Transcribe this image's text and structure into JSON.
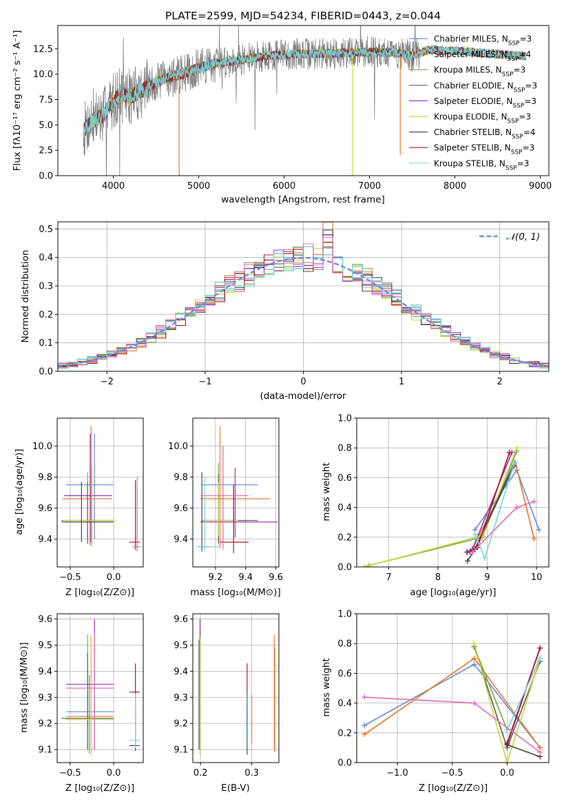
{
  "colors": {
    "palette": [
      "#6a8be0",
      "#e7782a",
      "#77a84a",
      "#5e5e5e",
      "#9c2fbf",
      "#c9d53a",
      "#444444",
      "#a81418",
      "#79d5d8"
    ],
    "pink": "#e46fae",
    "gray_spectrum": "#7f7f7f",
    "grid": "#b0b0b0"
  },
  "legend_entries": [
    {
      "prefix": "Chabrier MILES, N",
      "sub": "SSP",
      "suffix": "=3"
    },
    {
      "prefix": "Salpeter MILES, N",
      "sub": "SSP",
      "suffix": "=4"
    },
    {
      "prefix": "Kroupa MILES, N",
      "sub": "SSP",
      "suffix": "=3"
    },
    {
      "prefix": "Chabrier ELODIE, N",
      "sub": "SSP",
      "suffix": "=3"
    },
    {
      "prefix": "Salpeter ELODIE, N",
      "sub": "SSP",
      "suffix": "=3"
    },
    {
      "prefix": "Kroupa ELODIE, N",
      "sub": "SSP",
      "suffix": "=3"
    },
    {
      "prefix": "Chabrier STELIB, N",
      "sub": "SSP",
      "suffix": "=4"
    },
    {
      "prefix": "Salpeter STELIB, N",
      "sub": "SSP",
      "suffix": "=3"
    },
    {
      "prefix": "Kroupa STELIB, N",
      "sub": "SSP",
      "suffix": "=3"
    }
  ],
  "chart_data": [
    {
      "id": "spectrum",
      "type": "line",
      "title": "PLATE=2599, MJD=54234, FIBERID=0443, z=0.044",
      "xlabel": "wavelength [Angstrom, rest frame]",
      "ylabel": "Flux [fλ10⁻¹⁷ erg cm⁻² s⁻¹ A⁻¹]",
      "xlim": [
        3350,
        9100
      ],
      "ylim": [
        0,
        14.8
      ],
      "xticks": [
        4000,
        5000,
        6000,
        7000,
        8000,
        9000
      ],
      "yticks": [
        "0.0",
        "2.5",
        "5.0",
        "7.5",
        "10.0",
        "12.5"
      ],
      "legend_position": "right",
      "data_profile": {
        "x": [
          3650,
          3700,
          3800,
          3900,
          4000,
          4100,
          4200,
          4300,
          4400,
          4600,
          4800,
          5000,
          5200,
          5500,
          5800,
          6100,
          6400,
          6700,
          7000,
          7300,
          7500,
          7700,
          8000,
          8300,
          8600,
          8830
        ],
        "y": [
          4.4,
          5.0,
          5.6,
          6.1,
          7.5,
          8.0,
          7.8,
          8.3,
          8.7,
          9.6,
          10.0,
          10.6,
          11.1,
          11.4,
          11.8,
          12.0,
          12.0,
          12.1,
          12.2,
          12.1,
          11.8,
          12.4,
          12.3,
          12.1,
          11.9,
          11.8
        ]
      },
      "data_x_range": [
        3650,
        8830
      ],
      "observed_x_range": [
        3650,
        7600
      ]
    },
    {
      "id": "residual-histogram",
      "type": "bar",
      "xlabel": "(data-model)/error",
      "ylabel": "Normed distribution",
      "xlim": [
        -2.5,
        2.5
      ],
      "ylim": [
        0,
        0.525
      ],
      "xticks": [
        "−2",
        "−1",
        "0",
        "1",
        "2"
      ],
      "yticks": [
        "0.0",
        "0.1",
        "0.2",
        "0.3",
        "0.4",
        "0.5"
      ],
      "reference_curve": "𝒩(0, 1)",
      "bin_width": 0.1
    },
    {
      "id": "age-vs-metallicity",
      "type": "scatter",
      "xlabel": "Z [log₁₀(Z/Z⊙)]",
      "ylabel": "age  [log₁₀(age/yr)]",
      "xlim": [
        -0.65,
        0.34
      ],
      "ylim": [
        9.22,
        10.18
      ],
      "xticks": [
        "−0.5",
        "0.0"
      ],
      "yticks": [
        "9.4",
        "9.6",
        "9.8",
        "10.0"
      ],
      "crosses": [
        {
          "series": 0,
          "x": -0.22,
          "y": 9.75,
          "xerr": [
            0.33,
            0.22
          ],
          "yerr": [
            0.35,
            0.33
          ]
        },
        {
          "series": 1,
          "x": -0.26,
          "y": 9.66,
          "xerr": [
            0.33,
            0.24
          ],
          "yerr": [
            0.28,
            0.47
          ]
        },
        {
          "series": 2,
          "x": -0.3,
          "y": 9.52,
          "xerr": [
            0.27,
            0.3
          ],
          "yerr": [
            0.13,
            0.31
          ]
        },
        {
          "series": 3,
          "x": -0.3,
          "y": 9.52,
          "xerr": [
            0.3,
            0.3
          ],
          "yerr": [
            0.15,
            0.25
          ]
        },
        {
          "series": 4,
          "x": -0.27,
          "y": 9.68,
          "xerr": [
            0.3,
            0.25
          ],
          "yerr": [
            0.32,
            0.4
          ]
        },
        {
          "series": 5,
          "x": -0.25,
          "y": 9.52,
          "xerr": [
            0.33,
            0.27
          ],
          "yerr": [
            0.17,
            0.35
          ]
        },
        {
          "series": 6,
          "x": -0.37,
          "y": 9.51,
          "xerr": [
            0.23,
            0.37
          ],
          "yerr": [
            0.13,
            0.26
          ]
        },
        {
          "series": 7,
          "x": 0.25,
          "y": 9.38,
          "xerr": [
            0.07,
            0.05
          ],
          "yerr": [
            0.05,
            0.4
          ]
        },
        {
          "series": 8,
          "x": 0.27,
          "y": 9.35,
          "xerr": [
            0.05,
            0.05
          ],
          "yerr": [
            0.03,
            0.37
          ]
        },
        {
          "series": 9,
          "x": 0.27,
          "y": 9.35,
          "xerr": [
            0.05,
            0.03
          ],
          "yerr": [
            0.03,
            0.45
          ]
        }
      ]
    },
    {
      "id": "age-vs-mass",
      "type": "scatter",
      "xlabel": "mass [log₁₀(M/M⊙)]",
      "ylabel": "",
      "xlim": [
        9.05,
        9.62
      ],
      "ylim": [
        9.22,
        10.18
      ],
      "xticks": [
        "9.2",
        "9.4",
        "9.6"
      ],
      "yticks": [
        "9.4",
        "9.6",
        "9.8",
        "10.0"
      ],
      "crosses": [
        {
          "series": 0,
          "x": 9.25,
          "y": 9.75,
          "xerr": [
            0.14,
            0.23
          ],
          "yerr": [
            0.37,
            0.25
          ]
        },
        {
          "series": 1,
          "x": 9.23,
          "y": 9.66,
          "xerr": [
            0.13,
            0.33
          ],
          "yerr": [
            0.32,
            0.47
          ]
        },
        {
          "series": 2,
          "x": 9.22,
          "y": 9.52,
          "xerr": [
            0.1,
            0.18
          ],
          "yerr": [
            0.15,
            0.37
          ]
        },
        {
          "series": 3,
          "x": 9.22,
          "y": 9.52,
          "xerr": [
            0.11,
            0.26
          ],
          "yerr": [
            0.15,
            0.3
          ]
        },
        {
          "series": 4,
          "x": 9.33,
          "y": 9.51,
          "xerr": [
            0.23,
            0.28
          ],
          "yerr": [
            0.1,
            0.35
          ]
        },
        {
          "series": 5,
          "x": 9.22,
          "y": 9.52,
          "xerr": [
            0.1,
            0.13
          ],
          "yerr": [
            0.1,
            0.25
          ]
        },
        {
          "series": 6,
          "x": 9.11,
          "y": 9.35,
          "xerr": [
            0.03,
            0.05
          ],
          "yerr": [
            0.03,
            0.48
          ]
        },
        {
          "series": 7,
          "x": 9.32,
          "y": 9.38,
          "xerr": [
            0.09,
            0.1
          ],
          "yerr": [
            0.07,
            0.37
          ]
        },
        {
          "series": 8,
          "x": 9.13,
          "y": 9.35,
          "xerr": [
            0.05,
            0.1
          ],
          "yerr": [
            0.03,
            0.45
          ]
        },
        {
          "series": 9,
          "x": 9.25,
          "y": 9.68,
          "xerr": [
            0.15,
            0.17
          ],
          "yerr": [
            0.35,
            0.27
          ]
        }
      ]
    },
    {
      "id": "mass-weight-vs-age",
      "type": "line",
      "xlabel": "age  [log₁₀(age/yr)]",
      "ylabel": "mass weight",
      "xlim": [
        6.35,
        10.25
      ],
      "ylim": [
        0,
        1
      ],
      "xticks": [
        "7",
        "8",
        "9",
        "10"
      ],
      "yticks": [
        "0.0",
        "0.2",
        "0.4",
        "0.6",
        "0.8",
        "1.0"
      ],
      "series": [
        {
          "color_index": 0,
          "x": [
            8.75,
            9.6,
            10.05
          ],
          "y": [
            0.25,
            0.65,
            0.25
          ]
        },
        {
          "color_index": 1,
          "x": [
            8.7,
            9.57,
            9.95
          ],
          "y": [
            0.12,
            0.7,
            0.19
          ]
        },
        {
          "color_index": 2,
          "x": [
            6.6,
            8.9,
            9.6
          ],
          "y": [
            0.01,
            0.2,
            0.78
          ]
        },
        {
          "color_index": 3,
          "x": [
            8.58,
            8.75,
            9.55
          ],
          "y": [
            0.1,
            0.12,
            0.68
          ]
        },
        {
          "color_index": 4,
          "x": [
            8.6,
            8.7,
            9.5
          ],
          "y": [
            0.1,
            0.12,
            0.77
          ]
        },
        {
          "color_index": 5,
          "x": [
            6.5,
            8.9,
            9.6
          ],
          "y": [
            0.0,
            0.21,
            0.8
          ]
        },
        {
          "color_index": 6,
          "x": [
            8.6,
            8.75,
            9.55
          ],
          "y": [
            0.04,
            0.12,
            0.7
          ]
        },
        {
          "color_index": 7,
          "x": [
            8.65,
            8.8,
            9.45
          ],
          "y": [
            0.1,
            0.13,
            0.77
          ]
        },
        {
          "color_index": 8,
          "x": [
            8.75,
            8.95,
            9.55
          ],
          "y": [
            0.22,
            0.06,
            0.7
          ]
        },
        {
          "color_index": "pink",
          "x": [
            8.7,
            9.6,
            9.95
          ],
          "y": [
            0.1,
            0.4,
            0.44
          ]
        }
      ]
    },
    {
      "id": "mass-vs-metallicity",
      "type": "scatter",
      "xlabel": "Z [log₁₀(Z/Z⊙)]",
      "ylabel": "mass [log₁₀(M/M⊙)]",
      "xlim": [
        -0.65,
        0.34
      ],
      "ylim": [
        9.05,
        9.62
      ],
      "xticks": [
        "−0.5",
        "0.0"
      ],
      "yticks": [
        "9.1",
        "9.2",
        "9.3",
        "9.4",
        "9.5",
        "9.6"
      ],
      "crosses": [
        {
          "series": 0,
          "x": -0.28,
          "y": 9.245,
          "xerr": [
            0.27,
            0.28
          ],
          "yerr": [
            0.16,
            0.14
          ]
        },
        {
          "series": 1,
          "x": -0.26,
          "y": 9.227,
          "xerr": [
            0.28,
            0.25
          ],
          "yerr": [
            0.13,
            0.31
          ]
        },
        {
          "series": 2,
          "x": -0.3,
          "y": 9.22,
          "xerr": [
            0.3,
            0.3
          ],
          "yerr": [
            0.12,
            0.32
          ]
        },
        {
          "series": 3,
          "x": -0.3,
          "y": 9.22,
          "xerr": [
            0.3,
            0.3
          ],
          "yerr": [
            0.12,
            0.25
          ]
        },
        {
          "series": 4,
          "x": -0.22,
          "y": 9.35,
          "xerr": [
            0.33,
            0.22
          ],
          "yerr": [
            0.25,
            0.25
          ]
        },
        {
          "series": 5,
          "x": -0.26,
          "y": 9.215,
          "xerr": [
            0.3,
            0.26
          ],
          "yerr": [
            0.14,
            0.32
          ]
        },
        {
          "series": 6,
          "x": 0.25,
          "y": 9.115,
          "xerr": [
            0.07,
            0.05
          ],
          "yerr": [
            0.02,
            0.13
          ]
        },
        {
          "series": 7,
          "x": 0.25,
          "y": 9.32,
          "xerr": [
            0.07,
            0.05
          ],
          "yerr": [
            0.09,
            0.11
          ]
        },
        {
          "series": 8,
          "x": 0.25,
          "y": 9.135,
          "xerr": [
            0.07,
            0.05
          ],
          "yerr": [
            0.03,
            0.18
          ]
        },
        {
          "series": 9,
          "x": -0.22,
          "y": 9.335,
          "xerr": [
            0.33,
            0.22
          ],
          "yerr": [
            0.23,
            0.21
          ]
        }
      ]
    },
    {
      "id": "mass-vs-extinction",
      "type": "scatter",
      "xlabel": "E(B-V)",
      "ylabel": "",
      "xlim": [
        0.185,
        0.353
      ],
      "ylim": [
        9.05,
        9.62
      ],
      "xticks": [
        "0.2",
        "0.3"
      ],
      "yticks": [
        "9.1",
        "9.2",
        "9.3",
        "9.4",
        "9.5",
        "9.6"
      ],
      "vlines": [
        {
          "series": 4,
          "x": 0.199,
          "y": [
            9.35,
            9.6
          ]
        },
        {
          "series": 2,
          "x": 0.198,
          "y": [
            9.1,
            9.53
          ]
        },
        {
          "series": 5,
          "x": 0.199,
          "y": [
            9.08,
            9.53
          ]
        },
        {
          "series": 3,
          "x": 0.197,
          "y": [
            9.1,
            9.52
          ]
        },
        {
          "series": 1,
          "x": 0.3,
          "y": [
            9.12,
            9.31
          ]
        },
        {
          "series": 6,
          "x": 0.291,
          "y": [
            9.08,
            9.27
          ]
        },
        {
          "series": 7,
          "x": 0.291,
          "y": [
            9.2,
            9.43
          ]
        },
        {
          "series": 8,
          "x": 0.29,
          "y": [
            9.13,
            9.32
          ]
        },
        {
          "series": 1,
          "x": 0.344,
          "y": [
            9.1,
            9.54
          ]
        },
        {
          "series": 1,
          "x": 0.345,
          "y": [
            9.09,
            9.49
          ]
        }
      ]
    },
    {
      "id": "mass-weight-vs-metallicity",
      "type": "line",
      "xlabel": "Z [log₁₀(Z/Z⊙)]",
      "ylabel": "mass weight",
      "xlim": [
        -1.37,
        0.38
      ],
      "ylim": [
        0,
        1
      ],
      "xticks": [
        "−1.0",
        "−0.5",
        "0.0"
      ],
      "yticks": [
        "0.0",
        "0.2",
        "0.4",
        "0.6",
        "0.8",
        "1.0"
      ],
      "series": [
        {
          "color_index": 0,
          "x": [
            -1.3,
            -0.3,
            0.3
          ],
          "y": [
            0.25,
            0.66,
            0.1
          ]
        },
        {
          "color_index": 1,
          "x": [
            -1.3,
            -0.3,
            0.3
          ],
          "y": [
            0.19,
            0.7,
            0.1
          ]
        },
        {
          "color_index": 2,
          "x": [
            -0.3,
            0.0,
            0.3
          ],
          "y": [
            0.78,
            0.22,
            0.7
          ]
        },
        {
          "color_index": 3,
          "x": [
            -0.3,
            0.0,
            0.3
          ],
          "y": [
            0.78,
            0.1,
            0.68
          ]
        },
        {
          "color_index": 4,
          "x": [
            0.0,
            0.3
          ],
          "y": [
            0.12,
            0.77
          ]
        },
        {
          "color_index": 5,
          "x": [
            -0.3,
            0.0,
            0.3
          ],
          "y": [
            0.8,
            0.0,
            0.7
          ]
        },
        {
          "color_index": 6,
          "x": [
            0.0,
            0.3
          ],
          "y": [
            0.12,
            0.04
          ]
        },
        {
          "color_index": 7,
          "x": [
            0.0,
            0.3
          ],
          "y": [
            0.13,
            0.77
          ]
        },
        {
          "color_index": 8,
          "x": [
            0.0,
            0.3
          ],
          "y": [
            0.22,
            0.7
          ]
        },
        {
          "color_index": "pink",
          "x": [
            -1.3,
            -0.3,
            0.3
          ],
          "y": [
            0.44,
            0.4,
            0.07
          ]
        }
      ]
    }
  ]
}
